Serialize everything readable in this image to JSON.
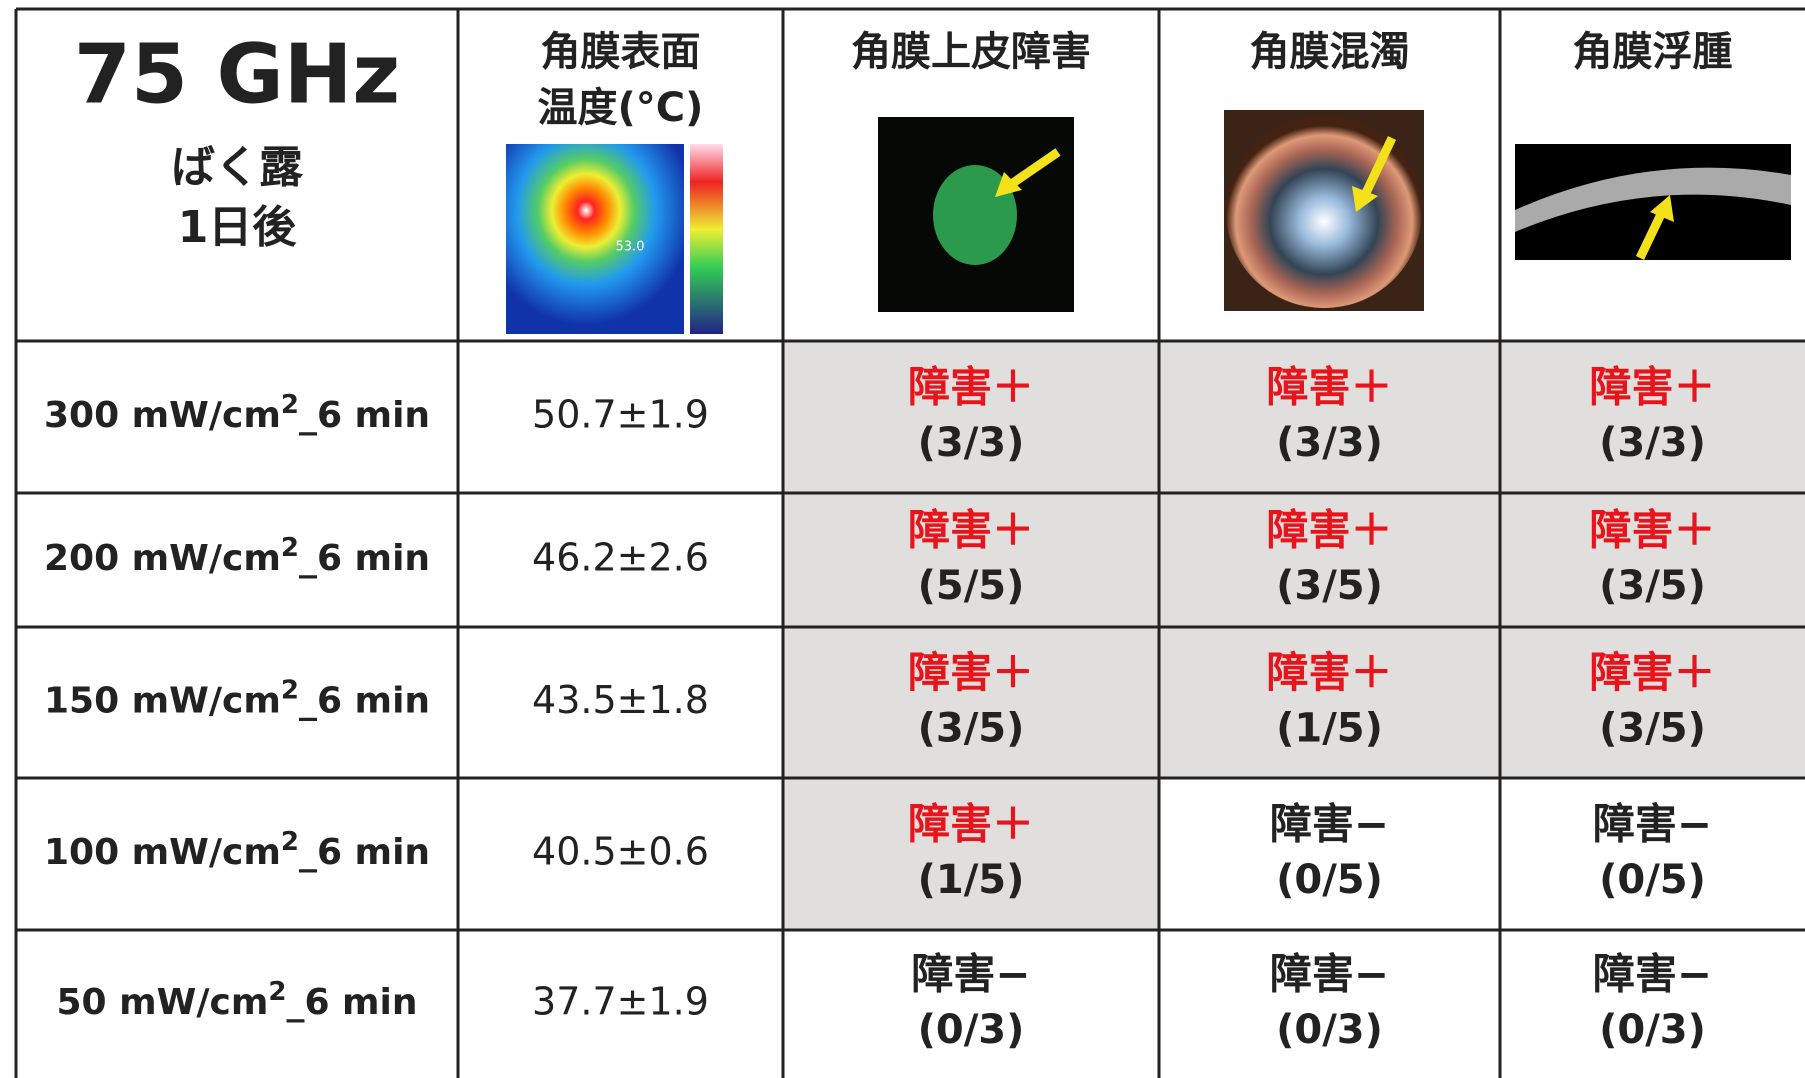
{
  "header": {
    "title": "75 GHz",
    "subtitle": [
      "ばく露",
      "1日後"
    ],
    "columns": [
      [
        "角膜表面",
        "温度(°C)"
      ],
      [
        "角膜上皮障害"
      ],
      [
        "角膜混濁"
      ],
      [
        "角膜浮腫"
      ]
    ],
    "thermal_label": "53.0"
  },
  "rows": [
    {
      "label": [
        "300 mW/cm",
        "2",
        "_6 min"
      ],
      "temperature": "50.7±1.9",
      "cells": [
        {
          "status": "障害＋",
          "count": "(3/3)",
          "highlight": true
        },
        {
          "status": "障害＋",
          "count": "(3/3)",
          "highlight": true
        },
        {
          "status": "障害＋",
          "count": "(3/3)",
          "highlight": true
        }
      ]
    },
    {
      "label": [
        "200 mW/cm",
        "2",
        "_6 min"
      ],
      "temperature": "46.2±2.6",
      "cells": [
        {
          "status": "障害＋",
          "count": "(5/5)",
          "highlight": true
        },
        {
          "status": "障害＋",
          "count": "(3/5)",
          "highlight": true
        },
        {
          "status": "障害＋",
          "count": "(3/5)",
          "highlight": true
        }
      ]
    },
    {
      "label": [
        "150 mW/cm",
        "2",
        "_6 min"
      ],
      "temperature": "43.5±1.8",
      "cells": [
        {
          "status": "障害＋",
          "count": "(3/5)",
          "highlight": true
        },
        {
          "status": "障害＋",
          "count": "(1/5)",
          "highlight": true
        },
        {
          "status": "障害＋",
          "count": "(3/5)",
          "highlight": true
        }
      ]
    },
    {
      "label": [
        "100 mW/cm",
        "2",
        "_6 min"
      ],
      "temperature": "40.5±0.6",
      "cells": [
        {
          "status": "障害＋",
          "count": "(1/5)",
          "highlight": true
        },
        {
          "status": "障害−",
          "count": "(0/5)",
          "highlight": false
        },
        {
          "status": "障害−",
          "count": "(0/5)",
          "highlight": false
        }
      ]
    },
    {
      "label": [
        "50 mW/cm",
        "2",
        "_6 min"
      ],
      "temperature": "37.7±1.9",
      "cells": [
        {
          "status": "障害−",
          "count": "(0/3)",
          "highlight": false
        },
        {
          "status": "障害−",
          "count": "(0/3)",
          "highlight": false
        },
        {
          "status": "障害−",
          "count": "(0/3)",
          "highlight": false
        }
      ]
    }
  ]
}
